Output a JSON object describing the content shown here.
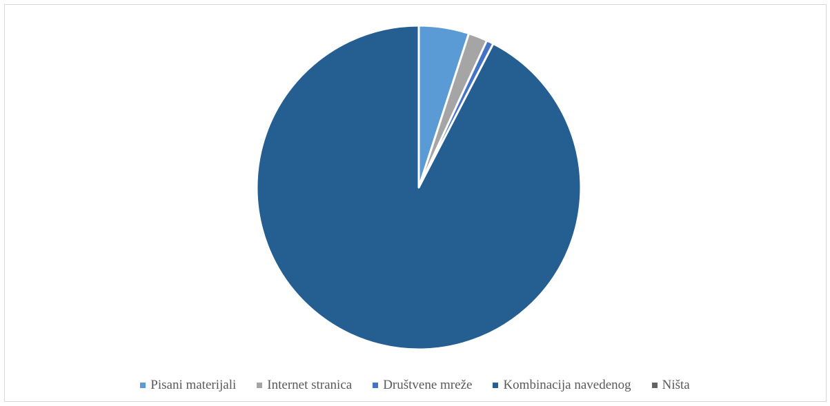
{
  "chart_data": {
    "type": "pie",
    "categories": [
      "Pisani materijali",
      "Internet stranica",
      "Društvene mreže",
      "Kombinacija navedenog",
      "Ništa"
    ],
    "values": [
      5.0,
      1.9,
      0.7,
      92.4,
      0.0
    ],
    "colors": [
      "#5b9bd5",
      "#a5a5a5",
      "#4472c4",
      "#255e91",
      "#636363"
    ],
    "start_angle_deg": 0,
    "direction": "clockwise",
    "slice_border_color": "#ffffff",
    "legend_position": "bottom"
  }
}
